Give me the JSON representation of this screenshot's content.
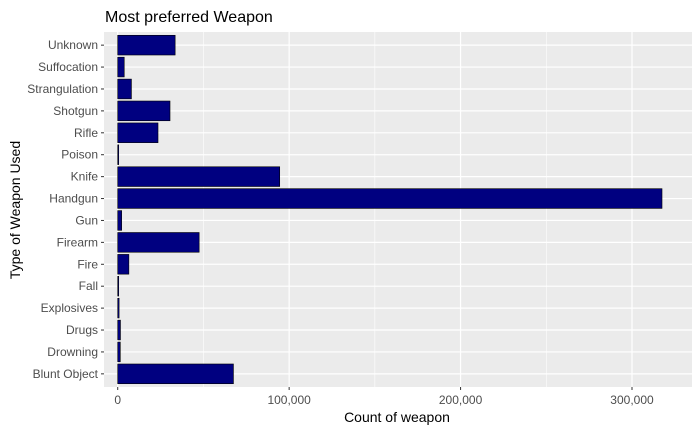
{
  "chart_data": {
    "type": "bar",
    "orientation": "horizontal",
    "title": "Most preferred Weapon",
    "xlabel": "Count of weapon",
    "ylabel": "Type of Weapon Used",
    "categories": [
      "Blunt Object",
      "Drowning",
      "Drugs",
      "Explosives",
      "Fall",
      "Fire",
      "Firearm",
      "Gun",
      "Handgun",
      "Knife",
      "Poison",
      "Rifle",
      "Shotgun",
      "Strangulation",
      "Suffocation",
      "Unknown"
    ],
    "values": [
      67500,
      1500,
      1600,
      800,
      300,
      6500,
      47500,
      2300,
      317500,
      94500,
      500,
      23500,
      30500,
      8000,
      3800,
      33500
    ],
    "xlim": [
      -8000,
      335000
    ],
    "xticks": [
      0,
      100000,
      200000,
      300000
    ],
    "xtick_labels": [
      "0",
      "100,000",
      "200,000",
      "300,000"
    ],
    "grid": true,
    "bar_color": "#000080",
    "bar_edge_color": "#000000",
    "panel_background": "#ebebeb",
    "grid_color": "#ffffff"
  }
}
